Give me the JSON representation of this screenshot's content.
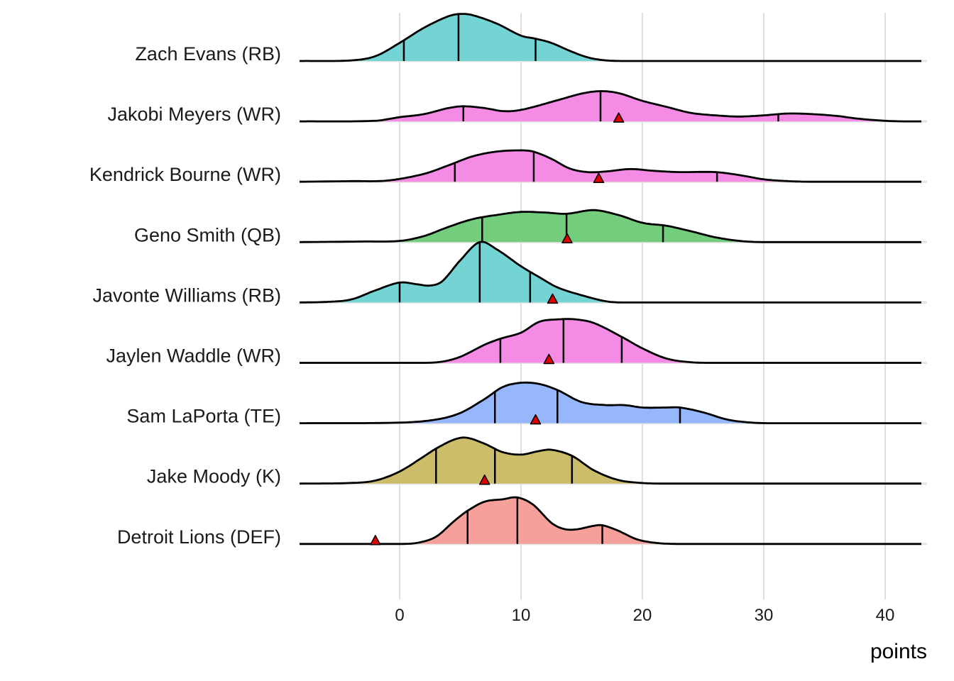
{
  "chart_data": {
    "type": "ridgeline",
    "title": "",
    "xlabel": "points",
    "ylabel": "",
    "xlim": [
      -8.3,
      43
    ],
    "x_ticks": [
      0,
      10,
      20,
      30,
      40
    ],
    "x_tick_labels": [
      "0",
      "10",
      "20",
      "30",
      "40"
    ],
    "grid": true,
    "legend": "none",
    "marker_color": "#e00000",
    "series": [
      {
        "name": "Zach Evans (RB)",
        "color": "#74d3d3",
        "quantiles": [
          0.35,
          4.85,
          11.2
        ],
        "marker": null,
        "density": [
          [
            -8.3,
            0
          ],
          [
            -4,
            0.01
          ],
          [
            -2,
            0.08
          ],
          [
            0,
            0.3
          ],
          [
            2,
            0.55
          ],
          [
            4,
            0.74
          ],
          [
            5,
            0.78
          ],
          [
            6,
            0.76
          ],
          [
            8,
            0.62
          ],
          [
            10,
            0.42
          ],
          [
            11.2,
            0.37
          ],
          [
            12.5,
            0.3
          ],
          [
            14,
            0.17
          ],
          [
            15.5,
            0.06
          ],
          [
            17,
            0.01
          ],
          [
            19,
            0
          ],
          [
            43,
            0
          ]
        ]
      },
      {
        "name": "Jakobi Meyers (WR)",
        "color": "#f48ce6",
        "quantiles": [
          5.25,
          16.55,
          31.2
        ],
        "marker": 18.05,
        "density": [
          [
            -8.3,
            0
          ],
          [
            -2,
            0.01
          ],
          [
            0,
            0.07
          ],
          [
            2,
            0.12
          ],
          [
            4,
            0.22
          ],
          [
            5.25,
            0.25
          ],
          [
            7,
            0.22
          ],
          [
            8.5,
            0.17
          ],
          [
            10,
            0.19
          ],
          [
            13,
            0.35
          ],
          [
            15,
            0.46
          ],
          [
            16.5,
            0.5
          ],
          [
            18,
            0.47
          ],
          [
            20,
            0.34
          ],
          [
            22,
            0.24
          ],
          [
            24,
            0.14
          ],
          [
            26,
            0.1
          ],
          [
            28,
            0.08
          ],
          [
            30,
            0.1
          ],
          [
            32,
            0.13
          ],
          [
            34,
            0.12
          ],
          [
            36,
            0.09
          ],
          [
            38,
            0.04
          ],
          [
            40,
            0.01
          ],
          [
            41.5,
            0
          ],
          [
            43,
            0
          ]
        ]
      },
      {
        "name": "Kendrick Bourne (WR)",
        "color": "#f48ce6",
        "quantiles": [
          4.55,
          11.05,
          26.15
        ],
        "marker": 16.4,
        "density": [
          [
            -8.3,
            0
          ],
          [
            -4,
            0.01
          ],
          [
            -1,
            0.02
          ],
          [
            2,
            0.13
          ],
          [
            4,
            0.27
          ],
          [
            6,
            0.42
          ],
          [
            8,
            0.5
          ],
          [
            10,
            0.52
          ],
          [
            11,
            0.5
          ],
          [
            12.5,
            0.38
          ],
          [
            14,
            0.22
          ],
          [
            15.5,
            0.16
          ],
          [
            17,
            0.17
          ],
          [
            19,
            0.21
          ],
          [
            21,
            0.18
          ],
          [
            23,
            0.16
          ],
          [
            26,
            0.16
          ],
          [
            28,
            0.11
          ],
          [
            30,
            0.04
          ],
          [
            32,
            0.01
          ],
          [
            34,
            0
          ],
          [
            43,
            0
          ]
        ]
      },
      {
        "name": "Geno Smith (QB)",
        "color": "#73cd7d",
        "quantiles": [
          6.8,
          13.75,
          21.7
        ],
        "marker": 13.8,
        "density": [
          [
            -8.3,
            0
          ],
          [
            -3,
            0.01
          ],
          [
            0,
            0.02
          ],
          [
            2,
            0.1
          ],
          [
            4,
            0.25
          ],
          [
            6,
            0.38
          ],
          [
            8,
            0.45
          ],
          [
            10,
            0.5
          ],
          [
            12,
            0.49
          ],
          [
            13.75,
            0.47
          ],
          [
            16,
            0.53
          ],
          [
            18,
            0.45
          ],
          [
            20,
            0.32
          ],
          [
            22,
            0.27
          ],
          [
            24,
            0.18
          ],
          [
            26,
            0.08
          ],
          [
            28,
            0.02
          ],
          [
            30,
            0
          ],
          [
            43,
            0
          ]
        ]
      },
      {
        "name": "Javonte Williams (RB)",
        "color": "#74d3d3",
        "quantiles": [
          0.0,
          6.6,
          10.75
        ],
        "marker": 12.6,
        "density": [
          [
            -8.3,
            0
          ],
          [
            -6,
            0.01
          ],
          [
            -4,
            0.05
          ],
          [
            -2,
            0.2
          ],
          [
            0,
            0.33
          ],
          [
            1.5,
            0.3
          ],
          [
            2.5,
            0.28
          ],
          [
            3.5,
            0.35
          ],
          [
            5,
            0.7
          ],
          [
            6.6,
            1.0
          ],
          [
            8,
            0.88
          ],
          [
            10,
            0.6
          ],
          [
            11.5,
            0.42
          ],
          [
            13,
            0.25
          ],
          [
            15,
            0.12
          ],
          [
            17,
            0.02
          ],
          [
            18.5,
            0
          ],
          [
            43,
            0
          ]
        ]
      },
      {
        "name": "Jaylen Waddle (WR)",
        "color": "#f48ce6",
        "quantiles": [
          8.3,
          13.5,
          18.3
        ],
        "marker": 12.3,
        "density": [
          [
            -8.3,
            0
          ],
          [
            2,
            0
          ],
          [
            3.5,
            0.02
          ],
          [
            5,
            0.1
          ],
          [
            7,
            0.3
          ],
          [
            8.3,
            0.4
          ],
          [
            10,
            0.5
          ],
          [
            11.5,
            0.68
          ],
          [
            13,
            0.72
          ],
          [
            14.5,
            0.72
          ],
          [
            16,
            0.66
          ],
          [
            18.3,
            0.43
          ],
          [
            20,
            0.24
          ],
          [
            22,
            0.07
          ],
          [
            24,
            0.01
          ],
          [
            26,
            0
          ],
          [
            43,
            0
          ]
        ]
      },
      {
        "name": "Sam LaPorta (TE)",
        "color": "#96b7fc",
        "quantiles": [
          7.85,
          13.0,
          23.1
        ],
        "marker": 11.2,
        "density": [
          [
            -8.3,
            0
          ],
          [
            0,
            0.01
          ],
          [
            3,
            0.06
          ],
          [
            5,
            0.17
          ],
          [
            7,
            0.4
          ],
          [
            8.5,
            0.6
          ],
          [
            10,
            0.67
          ],
          [
            11.5,
            0.65
          ],
          [
            13,
            0.55
          ],
          [
            15,
            0.35
          ],
          [
            17,
            0.3
          ],
          [
            18.5,
            0.3
          ],
          [
            20,
            0.26
          ],
          [
            22,
            0.26
          ],
          [
            23.1,
            0.26
          ],
          [
            25,
            0.18
          ],
          [
            27,
            0.06
          ],
          [
            29,
            0.01
          ],
          [
            31,
            0
          ],
          [
            43,
            0
          ]
        ]
      },
      {
        "name": "Jake Moody (K)",
        "color": "#cbbd6a",
        "quantiles": [
          3.0,
          7.85,
          14.2
        ],
        "marker": 7.0,
        "density": [
          [
            -8.3,
            0
          ],
          [
            -4,
            0.01
          ],
          [
            -2,
            0.05
          ],
          [
            0,
            0.2
          ],
          [
            2,
            0.45
          ],
          [
            3,
            0.58
          ],
          [
            4.5,
            0.73
          ],
          [
            5.5,
            0.76
          ],
          [
            7,
            0.66
          ],
          [
            8.5,
            0.52
          ],
          [
            10,
            0.48
          ],
          [
            11.5,
            0.54
          ],
          [
            12.5,
            0.56
          ],
          [
            14.2,
            0.46
          ],
          [
            16,
            0.22
          ],
          [
            18,
            0.06
          ],
          [
            20,
            0.01
          ],
          [
            22,
            0
          ],
          [
            43,
            0
          ]
        ]
      },
      {
        "name": "Detroit Lions (DEF)",
        "color": "#f5a09a",
        "quantiles": [
          5.6,
          9.7,
          16.7
        ],
        "marker": -2.0,
        "density": [
          [
            -8.3,
            0
          ],
          [
            0,
            0
          ],
          [
            1.5,
            0.02
          ],
          [
            3,
            0.12
          ],
          [
            4.5,
            0.38
          ],
          [
            5.6,
            0.55
          ],
          [
            7,
            0.7
          ],
          [
            8.5,
            0.74
          ],
          [
            9.7,
            0.77
          ],
          [
            11,
            0.65
          ],
          [
            12.5,
            0.35
          ],
          [
            13.5,
            0.25
          ],
          [
            14.5,
            0.24
          ],
          [
            16,
            0.3
          ],
          [
            16.7,
            0.31
          ],
          [
            18,
            0.22
          ],
          [
            19.5,
            0.08
          ],
          [
            21,
            0.02
          ],
          [
            23,
            0
          ],
          [
            43,
            0
          ]
        ]
      }
    ]
  }
}
